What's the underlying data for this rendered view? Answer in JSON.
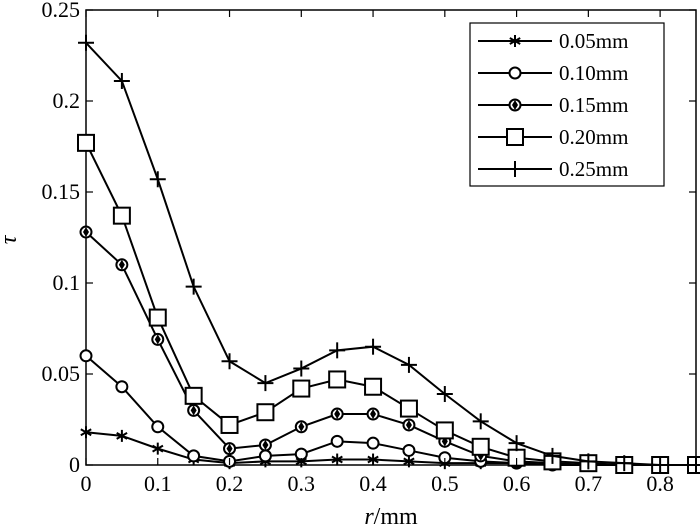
{
  "chart_data": {
    "type": "line",
    "xlabel_italic": "r",
    "xlabel_unit": "/mm",
    "ylabel": "τ",
    "xlim": [
      0,
      0.85
    ],
    "ylim": [
      0,
      0.25
    ],
    "xticks": [
      "0",
      "0.1",
      "0.2",
      "0.3",
      "0.4",
      "0.5",
      "0.6",
      "0.7",
      "0.8"
    ],
    "xtick_values": [
      0,
      0.1,
      0.2,
      0.3,
      0.4,
      0.5,
      0.6,
      0.7,
      0.8
    ],
    "yticks": [
      "0",
      "0.05",
      "0.1",
      "0.15",
      "0.2",
      "0.25"
    ],
    "ytick_values": [
      0,
      0.05,
      0.1,
      0.15,
      0.2,
      0.25
    ],
    "grid": false,
    "legend_position": "top-right",
    "x": [
      0,
      0.05,
      0.1,
      0.15,
      0.2,
      0.25,
      0.3,
      0.35,
      0.4,
      0.45,
      0.5,
      0.55,
      0.6,
      0.65,
      0.7,
      0.75,
      0.8,
      0.85
    ],
    "series": [
      {
        "name": "0.05mm",
        "marker": "star",
        "values": [
          0.018,
          0.016,
          0.009,
          0.003,
          0.001,
          0.002,
          0.002,
          0.003,
          0.003,
          0.002,
          0.001,
          0.001,
          0.001,
          0.0,
          0.0,
          0.0,
          0.0,
          0.0
        ]
      },
      {
        "name": "0.10mm",
        "marker": "circle",
        "values": [
          0.06,
          0.043,
          0.021,
          0.005,
          0.002,
          0.005,
          0.006,
          0.013,
          0.012,
          0.008,
          0.004,
          0.002,
          0.001,
          0.0,
          0.0,
          0.0,
          0.0,
          0.0
        ]
      },
      {
        "name": "0.15mm",
        "marker": "diamond-circle",
        "values": [
          0.128,
          0.11,
          0.069,
          0.03,
          0.009,
          0.011,
          0.021,
          0.028,
          0.028,
          0.022,
          0.013,
          0.005,
          0.002,
          0.001,
          0.0,
          0.0,
          0.0,
          0.0
        ]
      },
      {
        "name": "0.20mm",
        "marker": "square",
        "values": [
          0.177,
          0.137,
          0.081,
          0.038,
          0.022,
          0.029,
          0.042,
          0.047,
          0.043,
          0.031,
          0.019,
          0.01,
          0.004,
          0.002,
          0.001,
          0.0,
          0.0,
          0.0
        ]
      },
      {
        "name": "0.25mm",
        "marker": "plus",
        "values": [
          0.232,
          0.211,
          0.157,
          0.098,
          0.057,
          0.045,
          0.053,
          0.063,
          0.065,
          0.055,
          0.039,
          0.024,
          0.012,
          0.005,
          0.002,
          0.001,
          0.0,
          0.0
        ]
      }
    ]
  }
}
